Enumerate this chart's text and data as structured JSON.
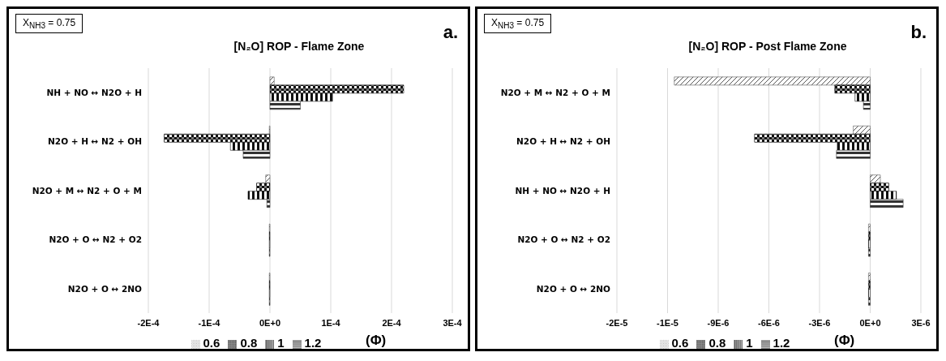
{
  "chart_data": [
    {
      "type": "bar",
      "orientation": "horizontal",
      "title": "[N₂O] ROP - Flame Zone",
      "annotations": [
        "X$_{NH3}$ = 0.75",
        "a."
      ],
      "categories": [
        "NH + NO ↔ N2O + H",
        "N2O + H ↔ N2 + OH",
        "N2O + M ↔ N2 + O + M",
        "N2O + O ↔ N2 + O2",
        "N2O + O ↔ 2NO"
      ],
      "series": [
        {
          "name": "0.6",
          "color": "#555555",
          "values": [
            7e-06,
            -1e-06,
            -7e-06,
            -1e-06,
            -1e-06
          ]
        },
        {
          "name": "0.8",
          "color": "#111111",
          "values": [
            0.00022,
            -0.000174,
            -2.2e-05,
            -1e-06,
            -1e-06
          ]
        },
        {
          "name": "1",
          "color": "#111111",
          "values": [
            0.000103,
            -6.5e-05,
            -3.6e-05,
            -1e-06,
            -1e-06
          ]
        },
        {
          "name": "1.2",
          "color": "#333333",
          "values": [
            5e-05,
            -4.4e-05,
            -5e-06,
            -1e-06,
            -1e-06
          ]
        }
      ],
      "legend_title": "(Φ)",
      "legend": "bottom",
      "grid": "x",
      "xlim": [
        -0.0002,
        0.0003
      ],
      "xticks": [
        {
          "value": -0.0002,
          "label": "-2E-4"
        },
        {
          "value": -0.0001,
          "label": "-1E-4"
        },
        {
          "value": 0,
          "label": "0E+0"
        },
        {
          "value": 0.0001,
          "label": "1E-4"
        },
        {
          "value": 0.0002,
          "label": "2E-4"
        },
        {
          "value": 0.0003,
          "label": "3E-4"
        }
      ]
    },
    {
      "type": "bar",
      "orientation": "horizontal",
      "title": "[N₂O] ROP - Post Flame Zone",
      "annotations": [
        "X$_{NH3}$ = 0.75",
        "b."
      ],
      "categories": [
        "N2O + M ↔ N2 + O + M",
        "N2O + H ↔ N2 + OH",
        "NH + NO ↔ N2O + H",
        "N2O + O ↔ N2 + O2",
        "N2O + O ↔ 2NO"
      ],
      "series": [
        {
          "name": "0.6",
          "color": "#555555",
          "values": [
            -1.16e-05,
            -1e-06,
            6e-07,
            -1e-07,
            -1e-07
          ]
        },
        {
          "name": "0.8",
          "color": "#111111",
          "values": [
            -2.1e-06,
            -6.85e-06,
            1.1e-06,
            -1e-07,
            -1e-07
          ]
        },
        {
          "name": "1",
          "color": "#111111",
          "values": [
            -9e-07,
            -1.95e-06,
            1.55e-06,
            -1e-07,
            -1e-07
          ]
        },
        {
          "name": "1.2",
          "color": "#333333",
          "values": [
            -4e-07,
            -2e-06,
            1.95e-06,
            -1e-07,
            -1e-07
          ]
        }
      ],
      "legend_title": "(Φ)",
      "legend": "bottom",
      "grid": "x",
      "xlim": [
        -1.5e-05,
        3e-06
      ],
      "xticks": [
        {
          "value": -1.5e-05,
          "label": "-2E-5"
        },
        {
          "value": -1.2e-05,
          "label": "-1E-5"
        },
        {
          "value": -9e-06,
          "label": "-9E-6"
        },
        {
          "value": -6e-06,
          "label": "-6E-6"
        },
        {
          "value": -3e-06,
          "label": "-3E-6"
        },
        {
          "value": 0,
          "label": "0E+0"
        },
        {
          "value": 3e-06,
          "label": "3E-6"
        }
      ]
    }
  ]
}
